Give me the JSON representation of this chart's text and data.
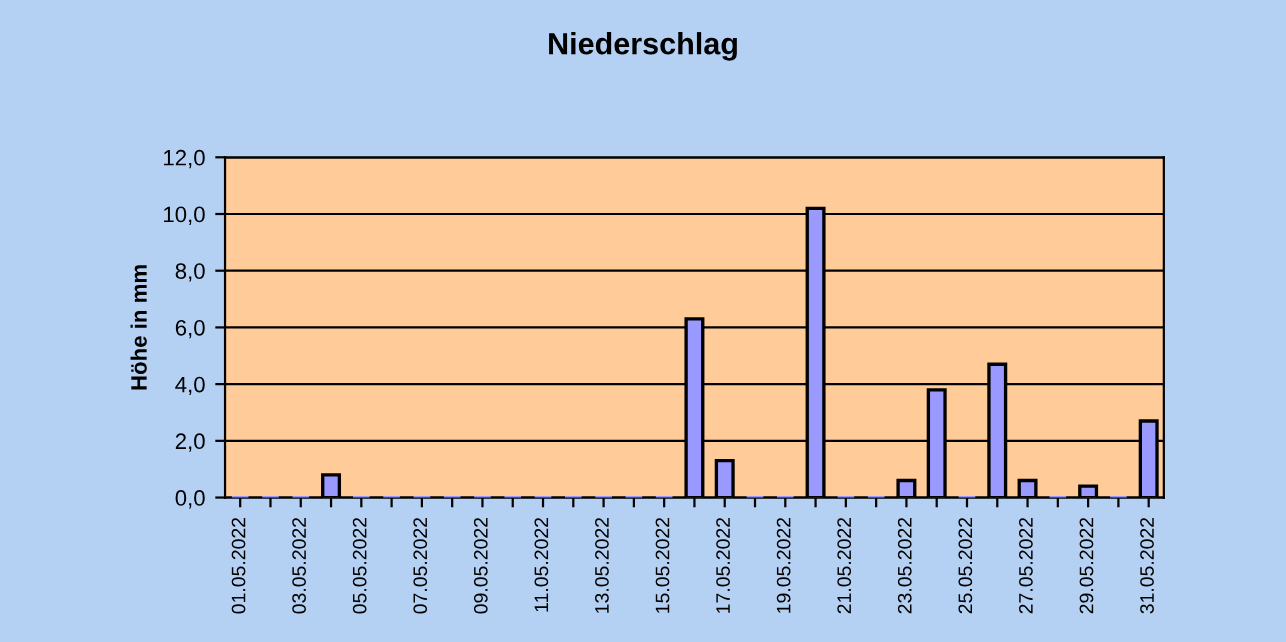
{
  "chart_data": {
    "type": "bar",
    "title": "Niederschlag",
    "ylabel": "Höhe in mm",
    "categories": [
      "01.05.2022",
      null,
      "03.05.2022",
      null,
      "05.05.2022",
      null,
      "07.05.2022",
      null,
      "09.05.2022",
      null,
      "11.05.2022",
      null,
      "13.05.2022",
      null,
      "15.05.2022",
      null,
      "17.05.2022",
      null,
      "19.05.2022",
      null,
      "21.05.2022",
      null,
      "23.05.2022",
      null,
      "25.05.2022",
      null,
      "27.05.2022",
      null,
      "29.05.2022",
      null,
      "31.05.2022"
    ],
    "values": [
      0,
      0,
      0,
      0.8,
      0,
      0,
      0,
      0,
      0,
      0,
      0,
      0,
      0,
      0,
      0,
      6.3,
      1.3,
      0,
      0,
      10.2,
      0,
      0,
      0.6,
      3.8,
      0,
      4.7,
      0.6,
      0,
      0.4,
      0,
      2.7
    ],
    "color": "#9999ff",
    "ylim": [
      0,
      12
    ],
    "yticks": [
      {
        "value": 0,
        "label": "0,0"
      },
      {
        "value": 2,
        "label": "2,0"
      },
      {
        "value": 4,
        "label": "4,0"
      },
      {
        "value": 6,
        "label": "6,0"
      },
      {
        "value": 8,
        "label": "8,0"
      },
      {
        "value": 10,
        "label": "10,0"
      },
      {
        "value": 12,
        "label": "12,0"
      }
    ],
    "grid": "y",
    "legend": false
  }
}
